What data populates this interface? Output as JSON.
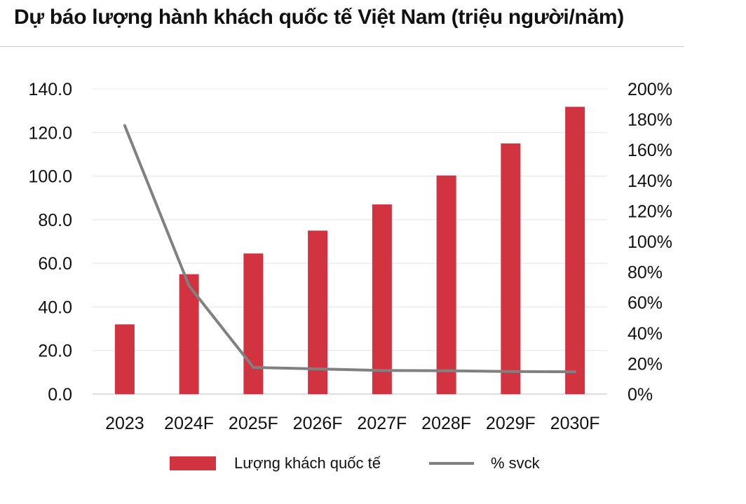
{
  "chart_data": {
    "type": "bar",
    "title": "Dự báo lượng hành khách quốc tế Việt Nam (triệu người/năm)",
    "categories": [
      "2023",
      "2024F",
      "2025F",
      "2026F",
      "2027F",
      "2028F",
      "2029F",
      "2030F"
    ],
    "series": [
      {
        "name": "Lượng khách quốc tế",
        "type": "bar",
        "axis": "left",
        "color": "#d13440",
        "values": [
          32.0,
          55.0,
          64.5,
          75.0,
          87.0,
          100.3,
          115.0,
          131.8
        ]
      },
      {
        "name": "% svck",
        "type": "line",
        "axis": "right",
        "color": "#808080",
        "values": [
          176,
          71,
          17.5,
          16.5,
          15.5,
          15.3,
          14.8,
          14.6
        ]
      }
    ],
    "yleft": {
      "min": 0,
      "max": 140,
      "ticks": [
        0,
        20,
        40,
        60,
        80,
        100,
        120,
        140
      ],
      "tick_labels": [
        "0.0",
        "20.0",
        "40.0",
        "60.0",
        "80.0",
        "100.0",
        "120.0",
        "140.0"
      ]
    },
    "yright": {
      "min": 0,
      "max": 200,
      "ticks": [
        0,
        20,
        40,
        60,
        80,
        100,
        120,
        140,
        160,
        180,
        200
      ],
      "tick_labels": [
        "0%",
        "20%",
        "40%",
        "60%",
        "80%",
        "100%",
        "120%",
        "140%",
        "160%",
        "180%",
        "200%"
      ]
    },
    "grid": true,
    "legend_position": "bottom"
  }
}
